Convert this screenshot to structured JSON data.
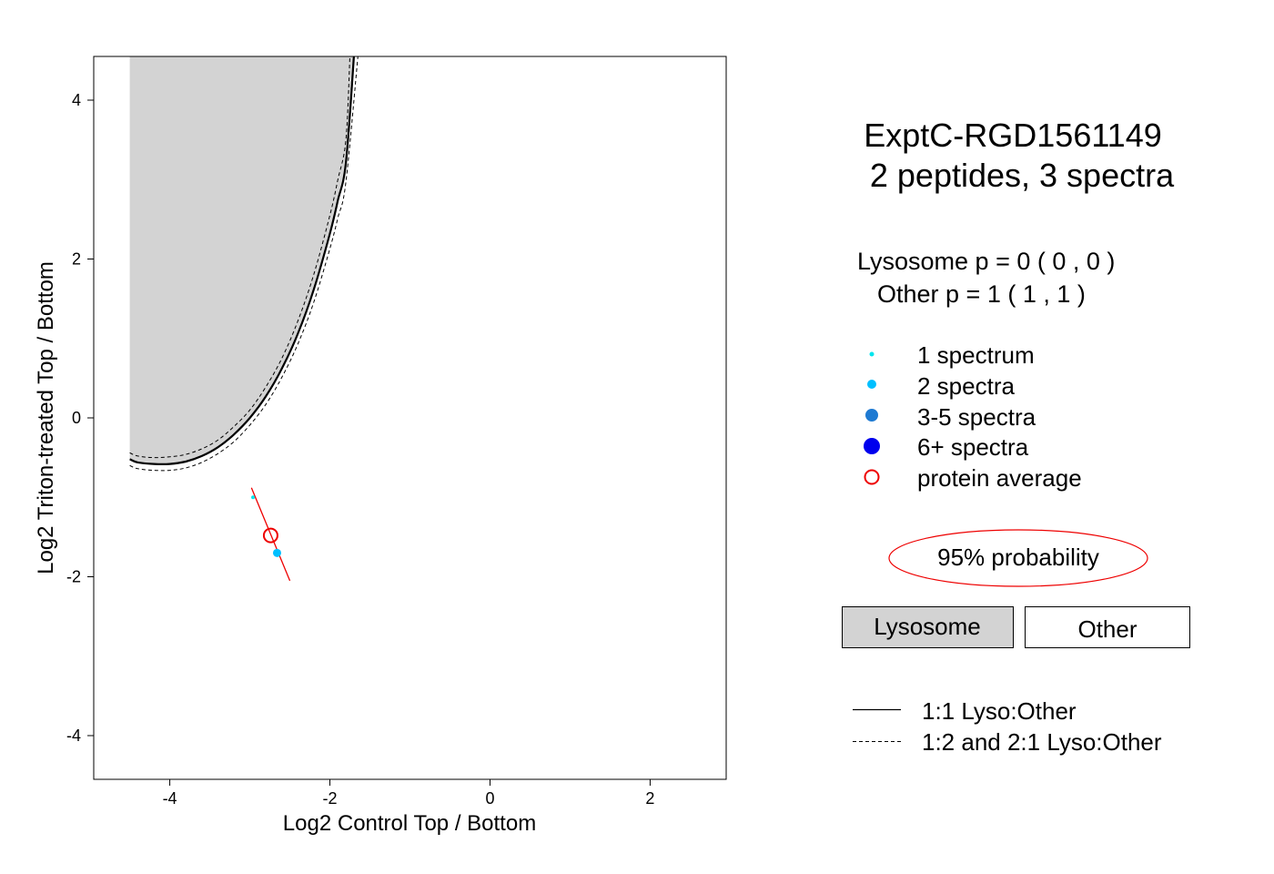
{
  "chart_data": {
    "type": "scatter",
    "xlabel": "Log2 Control Top / Bottom",
    "ylabel": "Log2 Triton-treated Top / Bottom",
    "xlim": [
      -4.95,
      2.95
    ],
    "ylim": [
      -4.55,
      4.55
    ],
    "x_ticks": [
      -4,
      -2,
      0,
      2
    ],
    "y_ticks": [
      -4,
      -2,
      0,
      2,
      4
    ],
    "x_tick_labels": [
      "-4",
      "-2",
      "0",
      "2"
    ],
    "y_tick_labels": [
      "-4",
      "-2",
      "0",
      "2",
      "4"
    ],
    "grid": false,
    "lysosome_region_boundary": {
      "x": [
        -4.5,
        -4.4,
        -4.2,
        -4.0,
        -3.8,
        -3.6,
        -3.4,
        -3.2,
        -3.0,
        -2.8,
        -2.6,
        -2.4,
        -2.2,
        -2.0,
        -1.9,
        -1.8,
        -1.7
      ],
      "y": [
        -0.52,
        -0.56,
        -0.58,
        -0.58,
        -0.55,
        -0.48,
        -0.37,
        -0.21,
        0.0,
        0.27,
        0.62,
        1.06,
        1.62,
        2.32,
        2.74,
        3.21,
        4.55
      ]
    },
    "ratio_2to1_boundary": {
      "x": [
        -4.5,
        -4.4,
        -4.2,
        -4.0,
        -3.8,
        -3.6,
        -3.4,
        -3.2,
        -3.0,
        -2.8,
        -2.6,
        -2.4,
        -2.2,
        -2.0,
        -1.9,
        -1.8,
        -1.75
      ],
      "y": [
        -0.44,
        -0.48,
        -0.5,
        -0.49,
        -0.46,
        -0.39,
        -0.28,
        -0.11,
        0.1,
        0.39,
        0.75,
        1.22,
        1.81,
        2.55,
        3.0,
        3.5,
        4.55
      ]
    },
    "ratio_1to2_boundary": {
      "x": [
        -4.5,
        -4.4,
        -4.2,
        -4.0,
        -3.8,
        -3.6,
        -3.4,
        -3.2,
        -3.0,
        -2.8,
        -2.6,
        -2.4,
        -2.2,
        -2.0,
        -1.9,
        -1.8,
        -1.65
      ],
      "y": [
        -0.6,
        -0.64,
        -0.66,
        -0.66,
        -0.63,
        -0.56,
        -0.45,
        -0.3,
        -0.09,
        0.17,
        0.51,
        0.93,
        1.46,
        2.13,
        2.52,
        2.97,
        4.55
      ]
    },
    "peptides": [
      {
        "x": -2.96,
        "y": -1.0,
        "spectra": 1
      },
      {
        "x": -2.66,
        "y": -1.7,
        "spectra": 2
      }
    ],
    "protein_average": {
      "x": -2.74,
      "y": -1.48
    },
    "confidence_segment": {
      "x": [
        -2.98,
        -2.5
      ],
      "y": [
        -0.88,
        -2.05
      ]
    },
    "colors": {
      "region_fill": "#d3d3d3",
      "spectrum_1": "#00e5ee",
      "spectra_2": "#00bfff",
      "spectra_3_5": "#1e7ad2",
      "spectra_6_plus": "#0000ee",
      "protein_average": "#ee0000"
    }
  },
  "legend": {
    "title_line1": "ExptC-RGD1561149",
    "title_line2": "2  peptides,  3  spectra",
    "lysosome_p": "Lysosome p =  0 (  0  ,  0 )",
    "other_p": "Other     p =  1 (  1  ,  1 )",
    "items": [
      {
        "label": "1 spectrum"
      },
      {
        "label": "2 spectra"
      },
      {
        "label": "3-5 spectra"
      },
      {
        "label": "6+ spectra"
      },
      {
        "label": "protein average"
      }
    ],
    "probability_label": "95% probability",
    "lysosome_box": "Lysosome",
    "other_box": "Other",
    "line_solid": "1:1 Lyso:Other",
    "line_dashed": "1:2 and 2:1 Lyso:Other"
  }
}
